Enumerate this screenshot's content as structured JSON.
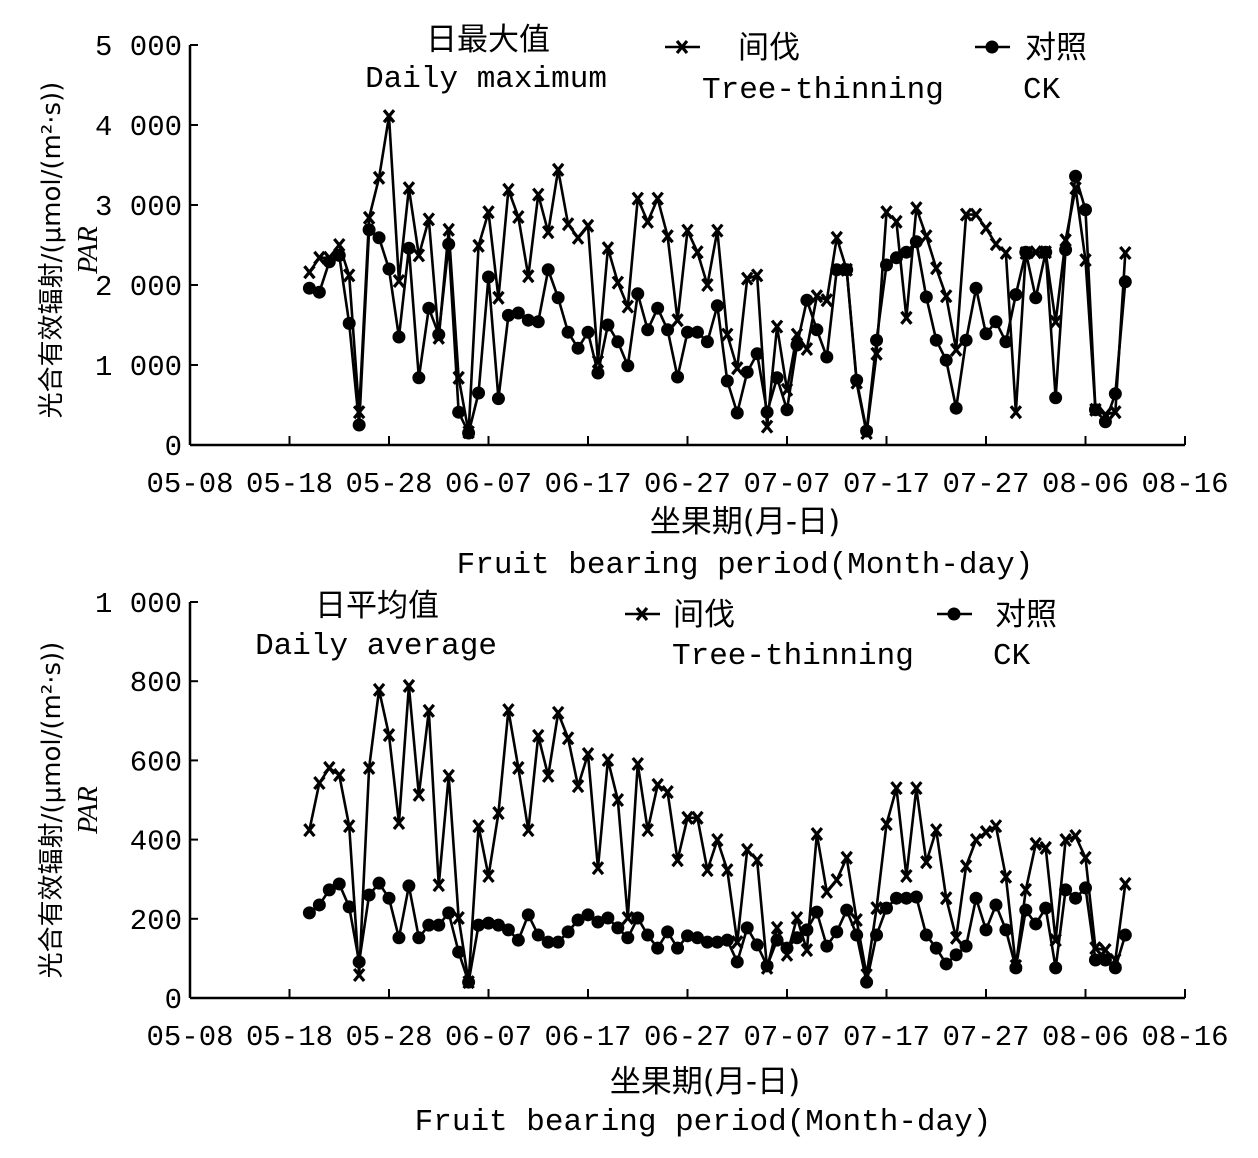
{
  "chart_data": [
    {
      "type": "line",
      "title_cn": "日最大值",
      "title_en": "Daily maximum",
      "xlabel_cn": "坐果期(月-日)",
      "xlabel_en": "Fruit bearing period(Month-day)",
      "ylabel_cn": "光合有效辐射/(μmol/(m²·s))",
      "ylabel_en": "PAR",
      "ylim": [
        0,
        5000
      ],
      "yticks": [
        0,
        1000,
        2000,
        3000,
        4000,
        5000
      ],
      "ytick_labels": [
        "0",
        "1 000",
        "2 000",
        "3 000",
        "4 000",
        "5 000"
      ],
      "xtick_labels": [
        "05-08",
        "05-18",
        "05-28",
        "06-07",
        "06-17",
        "06-27",
        "07-07",
        "07-17",
        "07-27",
        "08-06",
        "08-16"
      ],
      "x_unit": "days since 05-08, one point per day",
      "x_start_day": 12,
      "xlim_days": [
        0,
        100
      ],
      "legend": [
        {
          "cn": "间伐",
          "en": "Tree-thinning",
          "marker": "x"
        },
        {
          "cn": "对照",
          "en": "CK",
          "marker": "dot"
        }
      ],
      "legend_position": "top",
      "series": [
        {
          "name": "Tree-thinning",
          "marker": "x",
          "values": [
            2160,
            2340,
            2340,
            2500,
            2120,
            410,
            2840,
            3340,
            4110,
            2050,
            3210,
            2370,
            2820,
            1340,
            2690,
            840,
            160,
            2490,
            2910,
            1840,
            3190,
            2850,
            2110,
            3130,
            2660,
            3440,
            2760,
            2590,
            2740,
            1040,
            2460,
            2030,
            1730,
            3080,
            2790,
            3080,
            2610,
            1560,
            2680,
            2410,
            2000,
            2680,
            1380,
            960,
            2080,
            2120,
            230,
            1480,
            690,
            1380,
            1200,
            1860,
            1810,
            2590,
            2190,
            780,
            150,
            1140,
            2910,
            2790,
            1590,
            2960,
            2610,
            2210,
            1860,
            1190,
            2880,
            2880,
            2710,
            2510,
            2400,
            410,
            2400,
            2410,
            2410,
            1540,
            2560,
            3210,
            2310,
            440,
            380,
            410,
            2400
          ]
        },
        {
          "name": "CK",
          "marker": "dot",
          "values": [
            1960,
            1910,
            2290,
            2370,
            1520,
            250,
            2690,
            2590,
            2200,
            1350,
            2460,
            840,
            1710,
            1380,
            2510,
            410,
            150,
            650,
            2100,
            580,
            1620,
            1650,
            1560,
            1540,
            2190,
            1840,
            1410,
            1210,
            1410,
            900,
            1500,
            1290,
            990,
            1890,
            1440,
            1710,
            1440,
            850,
            1410,
            1410,
            1290,
            1740,
            800,
            400,
            910,
            1140,
            410,
            840,
            440,
            1250,
            1810,
            1440,
            1100,
            2190,
            2190,
            810,
            175,
            1310,
            2250,
            2340,
            2410,
            2540,
            1850,
            1310,
            1060,
            460,
            1310,
            1960,
            1390,
            1540,
            1290,
            1880,
            2410,
            1840,
            2410,
            590,
            2440,
            3360,
            2940,
            440,
            290,
            640,
            2040
          ]
        }
      ]
    },
    {
      "type": "line",
      "title_cn": "日平均值",
      "title_en": "Daily average",
      "xlabel_cn": "坐果期(月-日)",
      "xlabel_en": "Fruit bearing period(Month-day)",
      "ylabel_cn": "光合有效辐射/(μmol/(m²·s))",
      "ylabel_en": "PAR",
      "ylim": [
        0,
        1000
      ],
      "yticks": [
        0,
        200,
        400,
        600,
        800,
        1000
      ],
      "ytick_labels": [
        "0",
        "200",
        "400",
        "600",
        "800",
        "1 000"
      ],
      "xtick_labels": [
        "05-08",
        "05-18",
        "05-28",
        "06-07",
        "06-17",
        "06-27",
        "07-07",
        "07-17",
        "07-27",
        "08-06",
        "08-16"
      ],
      "x_unit": "days since 05-08, one point per day",
      "x_start_day": 12,
      "xlim_days": [
        0,
        100
      ],
      "legend": [
        {
          "cn": "间伐",
          "en": "Tree-thinning",
          "marker": "x"
        },
        {
          "cn": "对照",
          "en": "CK",
          "marker": "dot"
        }
      ],
      "legend_position": "top",
      "series": [
        {
          "name": "Tree-thinning",
          "marker": "x",
          "values": [
            424,
            543,
            581,
            563,
            434,
            58,
            581,
            778,
            664,
            442,
            788,
            513,
            725,
            285,
            561,
            202,
            40,
            434,
            308,
            467,
            727,
            581,
            424,
            662,
            561,
            720,
            656,
            535,
            616,
            328,
            601,
            500,
            202,
            591,
            424,
            538,
            520,
            348,
            455,
            455,
            323,
            399,
            323,
            141,
            374,
            348,
            76,
            177,
            109,
            202,
            121,
            414,
            268,
            298,
            354,
            197,
            58,
            227,
            439,
            530,
            308,
            530,
            343,
            424,
            252,
            152,
            333,
            399,
            419,
            434,
            306,
            81,
            273,
            389,
            379,
            146,
            399,
            409,
            354,
            126,
            121,
            96,
            288
          ]
        },
        {
          "name": "CK",
          "marker": "dot",
          "values": [
            215,
            235,
            273,
            288,
            230,
            91,
            260,
            290,
            252,
            152,
            283,
            152,
            184,
            184,
            215,
            116,
            40,
            184,
            189,
            184,
            172,
            146,
            210,
            159,
            141,
            141,
            167,
            197,
            210,
            192,
            202,
            177,
            152,
            202,
            159,
            126,
            167,
            126,
            157,
            152,
            141,
            141,
            146,
            91,
            177,
            134,
            81,
            146,
            126,
            152,
            172,
            217,
            131,
            167,
            222,
            159,
            40,
            159,
            227,
            252,
            252,
            255,
            159,
            126,
            86,
            109,
            131,
            252,
            172,
            235,
            172,
            76,
            222,
            187,
            227,
            76,
            273,
            252,
            278,
            96,
            96,
            76,
            159
          ]
        }
      ]
    }
  ]
}
